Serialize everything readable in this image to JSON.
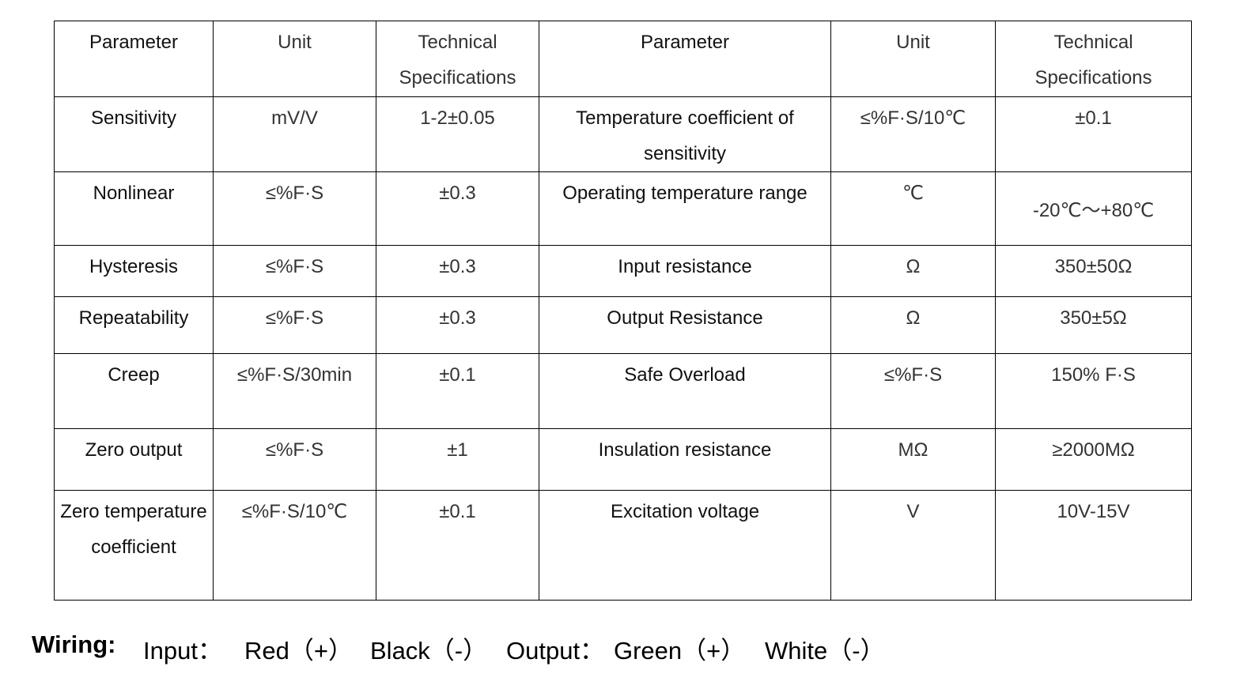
{
  "table": {
    "header": [
      "Parameter",
      "Unit",
      "Technical Specifications",
      "Parameter",
      "Unit",
      "Technical Specifications"
    ],
    "rows": [
      [
        "Sensitivity",
        "mV/V",
        "1-2±0.05",
        "Temperature coefficient of sensitivity",
        "≤%F·S/10℃",
        "±0.1"
      ],
      [
        "Nonlinear",
        "≤%F·S",
        "±0.3",
        "Operating temperature range",
        "℃",
        "-20℃～+80℃"
      ],
      [
        "Hysteresis",
        "≤%F·S",
        "±0.3",
        "Input resistance",
        "Ω",
        "350±50Ω"
      ],
      [
        "Repeatability",
        "≤%F·S",
        "±0.3",
        "Output Resistance",
        "Ω",
        "350±5Ω"
      ],
      [
        "Creep",
        "≤%F·S/30min",
        "±0.1",
        "Safe Overload",
        "≤%F·S",
        "150% F·S"
      ],
      [
        "Zero output",
        "≤%F·S",
        "±1",
        "Insulation resistance",
        "MΩ",
        "≥2000MΩ"
      ],
      [
        "Zero temperature coefficient",
        "≤%F·S/10℃",
        "±0.1",
        "Excitation voltage",
        "V",
        "10V-15V"
      ]
    ]
  },
  "wiring": {
    "label": "Wiring:",
    "input": "Input：",
    "input_pos": "Red（+）",
    "input_neg": "Black（-）",
    "output": "Output：",
    "output_pos": "Green（+）",
    "output_neg": "White（-）"
  }
}
